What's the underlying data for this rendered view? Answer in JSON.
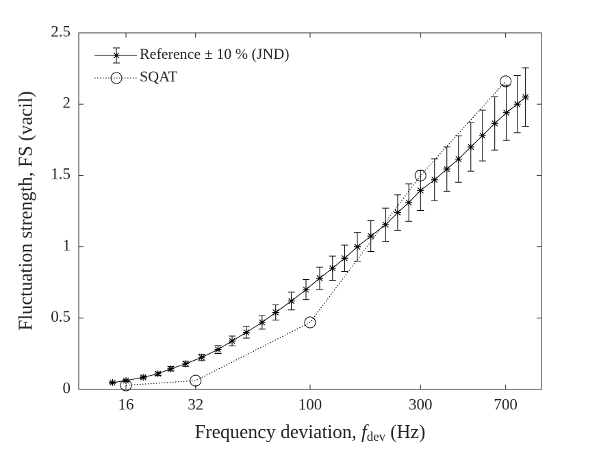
{
  "chart_data": {
    "type": "line",
    "xlabel": [
      "Frequency deviation, ",
      "f",
      "dev",
      " (Hz)"
    ],
    "ylabel": "Fluctuation strength, FS (vacil)",
    "xscale": "log",
    "xlim": [
      10,
      1000
    ],
    "ylim": [
      0,
      2.5
    ],
    "xticks": [
      16,
      32,
      100,
      300,
      700
    ],
    "yticks": [
      0,
      0.5,
      1,
      1.5,
      2,
      2.5
    ],
    "grid": false,
    "legend": "upper left",
    "series": [
      {
        "name": "Reference ± 10 % (JND)",
        "color": "#000000",
        "line": "solid",
        "marker": "star",
        "x": [
          14,
          16,
          19,
          22,
          25,
          29,
          34,
          40,
          46,
          53,
          62,
          71,
          83,
          96,
          110,
          125,
          141,
          160,
          183,
          212,
          239,
          267,
          300,
          345,
          390,
          438,
          495,
          556,
          628,
          705,
          786,
          853
        ],
        "values": [
          0.048,
          0.062,
          0.085,
          0.11,
          0.145,
          0.18,
          0.225,
          0.28,
          0.34,
          0.4,
          0.47,
          0.54,
          0.62,
          0.7,
          0.78,
          0.85,
          0.92,
          1.0,
          1.075,
          1.155,
          1.24,
          1.31,
          1.395,
          1.47,
          1.545,
          1.615,
          1.7,
          1.78,
          1.865,
          1.94,
          2.0,
          2.05
        ],
        "errors": [
          0.005,
          0.006,
          0.009,
          0.011,
          0.015,
          0.018,
          0.023,
          0.028,
          0.034,
          0.04,
          0.047,
          0.054,
          0.062,
          0.07,
          0.078,
          0.085,
          0.092,
          0.1,
          0.108,
          0.116,
          0.124,
          0.131,
          0.14,
          0.147,
          0.155,
          0.162,
          0.17,
          0.178,
          0.187,
          0.194,
          0.2,
          0.205
        ]
      },
      {
        "name": "SQAT",
        "color": "#000000",
        "line": "dotted",
        "marker": "circle",
        "x": [
          16,
          32,
          100,
          300,
          700
        ],
        "values": [
          0.029,
          0.062,
          0.47,
          1.5,
          2.16
        ]
      }
    ]
  }
}
